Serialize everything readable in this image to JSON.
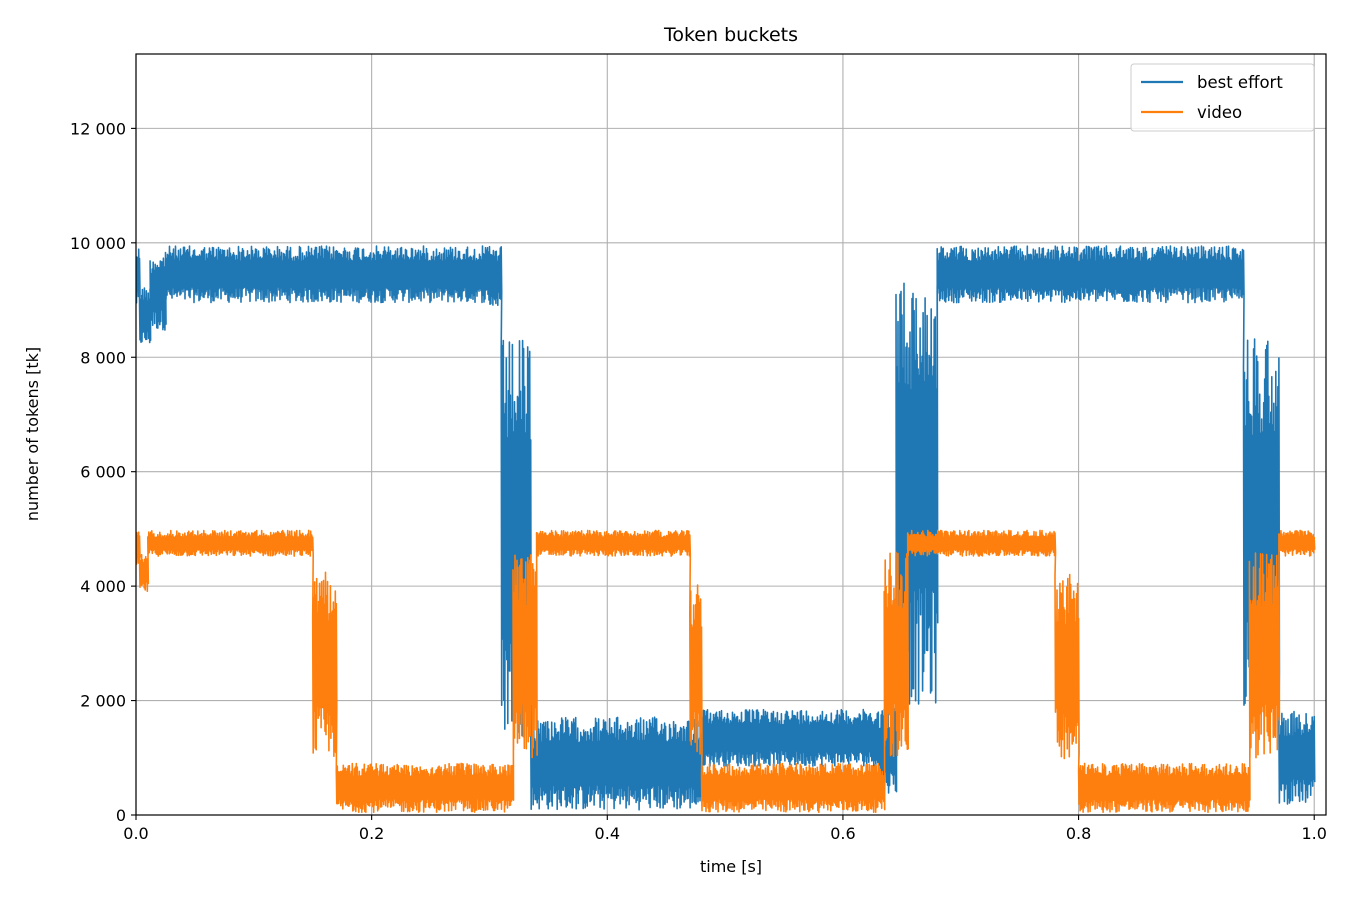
{
  "chart_data": {
    "type": "line",
    "title": "Token buckets",
    "xlabel": "time [s]",
    "ylabel": "number of tokens [tk]",
    "xlim": [
      0.0,
      1.01
    ],
    "ylim": [
      0,
      13300
    ],
    "xticks": [
      0.0,
      0.2,
      0.4,
      0.6,
      0.8,
      1.0
    ],
    "xtick_labels": [
      "0.0",
      "0.2",
      "0.4",
      "0.6",
      "0.8",
      "1.0"
    ],
    "yticks": [
      0,
      2000,
      4000,
      6000,
      8000,
      10000,
      12000
    ],
    "ytick_labels": [
      "0",
      "2 000",
      "4 000",
      "6 000",
      "8 000",
      "10 000",
      "12 000"
    ],
    "grid": true,
    "legend_position": "top-right",
    "series": [
      {
        "name": "best effort",
        "color": "#1f77b4",
        "segments": [
          {
            "t0": 0.0,
            "t1": 0.003,
            "low": 8800,
            "high": 10000
          },
          {
            "t0": 0.003,
            "t1": 0.012,
            "low": 8150,
            "high": 9300
          },
          {
            "t0": 0.012,
            "t1": 0.025,
            "low": 8400,
            "high": 9900
          },
          {
            "t0": 0.025,
            "t1": 0.3,
            "low": 8900,
            "high": 10000
          },
          {
            "t0": 0.3,
            "t1": 0.31,
            "low": 8800,
            "high": 10000
          },
          {
            "t0": 0.31,
            "t1": 0.335,
            "low": 1000,
            "high": 8700
          },
          {
            "t0": 0.335,
            "t1": 0.48,
            "low": 0,
            "high": 1800
          },
          {
            "t0": 0.48,
            "t1": 0.63,
            "low": 800,
            "high": 1900
          },
          {
            "t0": 0.63,
            "t1": 0.645,
            "low": 300,
            "high": 2000
          },
          {
            "t0": 0.645,
            "t1": 0.68,
            "low": 1500,
            "high": 9800
          },
          {
            "t0": 0.68,
            "t1": 0.94,
            "low": 8900,
            "high": 10000
          },
          {
            "t0": 0.94,
            "t1": 0.97,
            "low": 1500,
            "high": 8800
          },
          {
            "t0": 0.97,
            "t1": 1.0,
            "low": 100,
            "high": 1900
          }
        ]
      },
      {
        "name": "video",
        "color": "#ff7f0e",
        "segments": [
          {
            "t0": 0.0,
            "t1": 0.003,
            "low": 4300,
            "high": 5000
          },
          {
            "t0": 0.003,
            "t1": 0.01,
            "low": 3850,
            "high": 4600
          },
          {
            "t0": 0.01,
            "t1": 0.15,
            "low": 4500,
            "high": 5000
          },
          {
            "t0": 0.15,
            "t1": 0.17,
            "low": 800,
            "high": 4500
          },
          {
            "t0": 0.17,
            "t1": 0.32,
            "low": 0,
            "high": 950
          },
          {
            "t0": 0.32,
            "t1": 0.34,
            "low": 800,
            "high": 4800
          },
          {
            "t0": 0.34,
            "t1": 0.47,
            "low": 4500,
            "high": 5000
          },
          {
            "t0": 0.47,
            "t1": 0.48,
            "low": 800,
            "high": 4300
          },
          {
            "t0": 0.48,
            "t1": 0.635,
            "low": 0,
            "high": 950
          },
          {
            "t0": 0.635,
            "t1": 0.655,
            "low": 800,
            "high": 4800
          },
          {
            "t0": 0.655,
            "t1": 0.78,
            "low": 4500,
            "high": 5000
          },
          {
            "t0": 0.78,
            "t1": 0.8,
            "low": 800,
            "high": 4400
          },
          {
            "t0": 0.8,
            "t1": 0.945,
            "low": 0,
            "high": 950
          },
          {
            "t0": 0.945,
            "t1": 0.97,
            "low": 800,
            "high": 4800
          },
          {
            "t0": 0.97,
            "t1": 1.0,
            "low": 4500,
            "high": 5000
          }
        ]
      }
    ]
  }
}
